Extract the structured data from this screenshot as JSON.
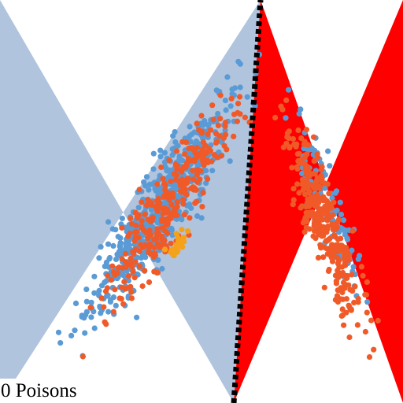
{
  "chart_data": {
    "type": "scatter",
    "title": "",
    "xlabel": "",
    "ylabel": "",
    "xlim": [
      0,
      512
    ],
    "ylim": [
      0,
      512
    ],
    "grid": false,
    "regions": [
      {
        "side": "left",
        "color": "#b0c4de"
      },
      {
        "side": "right",
        "color": "#ff0000"
      }
    ],
    "decision_boundary": {
      "style": "dashed-black",
      "points": [
        [
          297,
          512
        ],
        [
          331,
          0
        ]
      ]
    },
    "series": [
      {
        "class": "blue",
        "color": "#5b9bd5",
        "clusters": [
          {
            "center": [
              205,
              265
            ],
            "axis": [
              0.53,
              -0.85
            ],
            "len_sd": 75,
            "wid_sd": 16,
            "n": 640,
            "seed": 11
          },
          {
            "center": [
              415,
              255
            ],
            "axis": [
              0.34,
              0.94
            ],
            "len_sd": 55,
            "wid_sd": 9,
            "n": 110,
            "seed": 23
          }
        ]
      },
      {
        "class": "orange",
        "color": "#f05a28",
        "clusters": [
          {
            "center": [
              215,
              265
            ],
            "axis": [
              0.53,
              -0.85
            ],
            "len_sd": 70,
            "wid_sd": 16,
            "n": 300,
            "seed": 37
          },
          {
            "center": [
              412,
              285
            ],
            "axis": [
              0.32,
              0.95
            ],
            "len_sd": 68,
            "wid_sd": 11,
            "n": 330,
            "seed": 41
          }
        ]
      },
      {
        "class": "poison",
        "color": "#f5a21a",
        "clusters": [
          {
            "center": [
              228,
              310
            ],
            "axis": [
              0.53,
              -0.85
            ],
            "len_sd": 12,
            "wid_sd": 5,
            "n": 24,
            "seed": 53
          }
        ]
      }
    ],
    "annotation": "0 Poisons"
  }
}
